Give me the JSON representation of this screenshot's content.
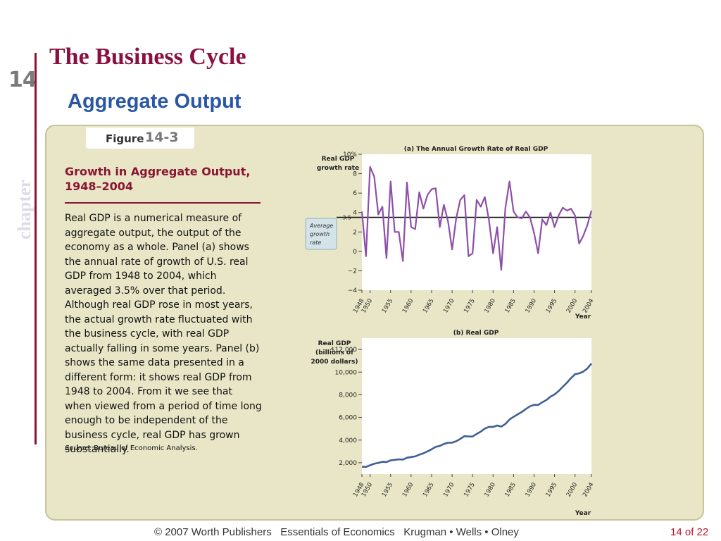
{
  "slide": {
    "chapter_number": "14",
    "chapter_word": "chapter",
    "title": "The Business Cycle",
    "subtitle": "Aggregate Output"
  },
  "figure": {
    "label_word": "Figure",
    "label_number": "14-3",
    "heading": "Growth in Aggregate Output, 1948–2004",
    "body": "Real GDP is a numerical measure of aggregate output, the output of the economy as a whole. Panel (a) shows the annual rate of growth of U.S. real GDP from 1948 to 2004, which averaged 3.5% over that period. Although real GDP rose in most years, the actual growth rate fluctuated with the business cycle, with real GDP actually falling in some years. Panel (b) shows the same data presented in a different form: it shows real GDP from 1948 to 2004. From it we see that when viewed from a period of time long enough to be independent of the business cycle, real GDP has grown substantially.",
    "source_label": "Source",
    "source_text": ": Bureau of Economic Analysis."
  },
  "colors": {
    "growth_line": "#8e4fa8",
    "gdp_line": "#3f5f96",
    "average_line": "#111111",
    "panel_bg": "#e8e6c6",
    "title": "#8a1040",
    "subtitle": "#2957a4"
  },
  "chart_data": [
    {
      "type": "line",
      "title": "(a) The Annual Growth Rate of Real GDP",
      "ylabel": [
        "Real GDP",
        "growth rate"
      ],
      "xlabel": "Year",
      "ylim": [
        -4,
        10
      ],
      "xlim": [
        1948,
        2004
      ],
      "yticks": [
        "−4",
        "−2",
        "0",
        "2",
        "4",
        "6",
        "8",
        "10%"
      ],
      "xticks": [
        "1948",
        "1950",
        "1955",
        "1960",
        "1965",
        "1970",
        "1975",
        "1980",
        "1985",
        "1990",
        "1995",
        "2000",
        "2004"
      ],
      "annotation": {
        "lines": [
          "Average",
          "growth",
          "rate"
        ],
        "value_label": "3.5",
        "value": 3.5
      },
      "series": [
        {
          "x": [
            1948,
            1949,
            1950,
            1951,
            1952,
            1953,
            1954,
            1955,
            1956,
            1957,
            1958,
            1959,
            1960,
            1961,
            1962,
            1963,
            1964,
            1965,
            1966,
            1967,
            1968,
            1969,
            1970,
            1971,
            1972,
            1973,
            1974,
            1975,
            1976,
            1977,
            1978,
            1979,
            1980,
            1981,
            1982,
            1983,
            1984,
            1985,
            1986,
            1987,
            1988,
            1989,
            1990,
            1991,
            1992,
            1993,
            1994,
            1995,
            1996,
            1997,
            1998,
            1999,
            2000,
            2001,
            2002,
            2003,
            2004
          ],
          "values": [
            4.1,
            -0.5,
            8.7,
            7.7,
            3.8,
            4.6,
            -0.7,
            7.2,
            2.0,
            2.0,
            -1.0,
            7.1,
            2.5,
            2.3,
            6.1,
            4.4,
            5.8,
            6.4,
            6.5,
            2.5,
            4.8,
            3.1,
            0.2,
            3.4,
            5.3,
            5.8,
            -0.5,
            -0.2,
            5.3,
            4.6,
            5.6,
            3.2,
            -0.2,
            2.5,
            -1.9,
            4.5,
            7.2,
            4.1,
            3.5,
            3.4,
            4.1,
            3.5,
            1.9,
            -0.2,
            3.3,
            2.7,
            4.0,
            2.5,
            3.7,
            4.5,
            4.2,
            4.4,
            3.7,
            0.8,
            1.6,
            2.7,
            4.2
          ]
        }
      ]
    },
    {
      "type": "line",
      "title": "(b) Real GDP",
      "ylabel": [
        "Real GDP",
        "(billions of",
        "2000 dollars)"
      ],
      "xlabel": "Year",
      "ylim": [
        1000,
        13000
      ],
      "xlim": [
        1948,
        2004
      ],
      "yticks": [
        "2,000",
        "4,000",
        "6,000",
        "8,000",
        "10,000",
        "$12,000"
      ],
      "xticks": [
        "1948",
        "1950",
        "1955",
        "1960",
        "1965",
        "1970",
        "1975",
        "1980",
        "1985",
        "1990",
        "1995",
        "2000",
        "2004"
      ],
      "series": [
        {
          "x": [
            1948,
            1949,
            1950,
            1951,
            1952,
            1953,
            1954,
            1955,
            1956,
            1957,
            1958,
            1959,
            1960,
            1961,
            1962,
            1963,
            1964,
            1965,
            1966,
            1967,
            1968,
            1969,
            1970,
            1971,
            1972,
            1973,
            1974,
            1975,
            1976,
            1977,
            1978,
            1979,
            1980,
            1981,
            1982,
            1983,
            1984,
            1985,
            1986,
            1987,
            1988,
            1989,
            1990,
            1991,
            1992,
            1993,
            1994,
            1995,
            1996,
            1997,
            1998,
            1999,
            2000,
            2001,
            2002,
            2003,
            2004
          ],
          "values": [
            1644,
            1634,
            1777,
            1915,
            1988,
            2079,
            2065,
            2212,
            2256,
            2301,
            2279,
            2441,
            2502,
            2560,
            2715,
            2834,
            3000,
            3191,
            3399,
            3485,
            3653,
            3765,
            3772,
            3899,
            4105,
            4342,
            4320,
            4311,
            4541,
            4750,
            5015,
            5173,
            5162,
            5291,
            5189,
            5424,
            5814,
            6054,
            6264,
            6475,
            6743,
            6981,
            7113,
            7101,
            7337,
            7533,
            7835,
            8032,
            8329,
            8704,
            9067,
            9470,
            9817,
            9891,
            10049,
            10321,
            10756
          ]
        }
      ]
    }
  ],
  "footer": {
    "credits": "© 2007 Worth Publishers   Essentials of Economics   Krugman • Wells • Olney",
    "page": "14 of 22"
  }
}
